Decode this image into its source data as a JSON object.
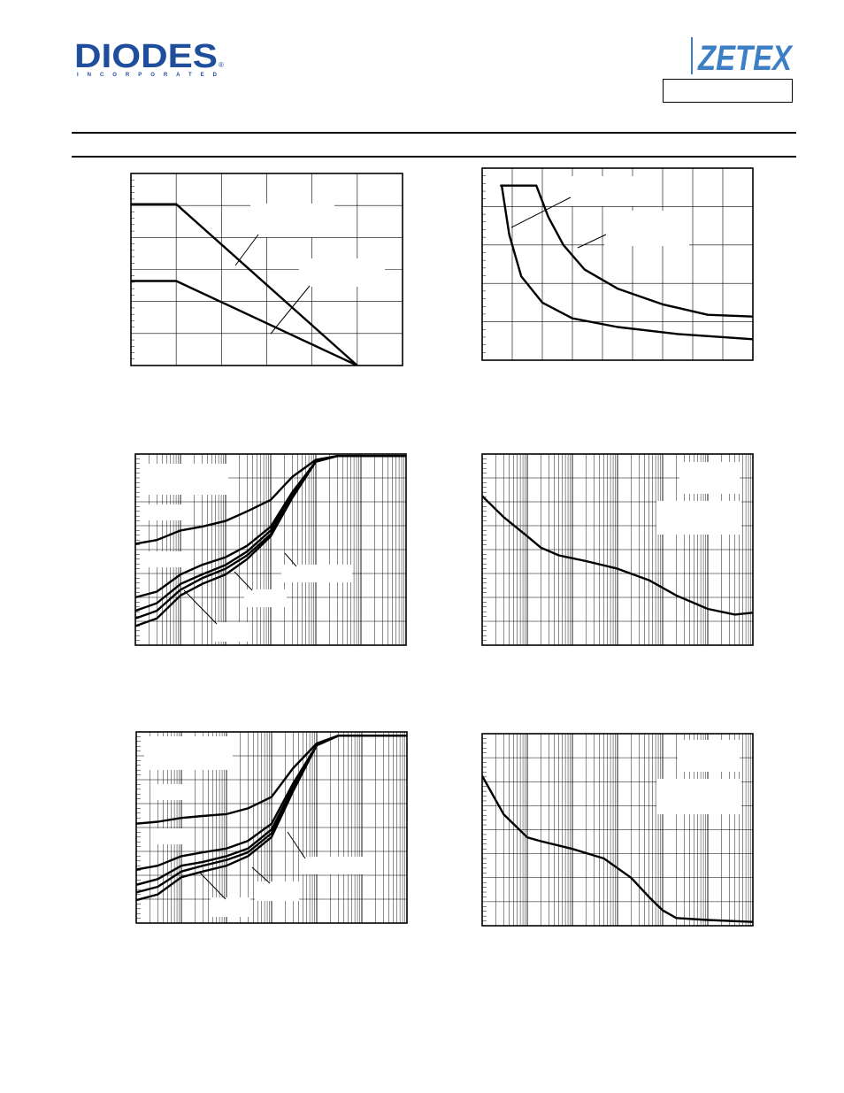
{
  "header": {
    "brand_left": "DIODES",
    "brand_left_sub": "INCORPORATED",
    "brand_left_mark": "®",
    "brand_right": "ZETEX",
    "part_number": ""
  },
  "colors": {
    "diodes_blue": "#1f4e9c",
    "zetex_blue": "#3d7fc4",
    "ink": "#000000",
    "grid": "#000000"
  },
  "chart_data": [
    {
      "name": "top-left",
      "type": "line",
      "xlim": [
        0,
        6
      ],
      "ylim": [
        0,
        5
      ],
      "series": [
        {
          "x": [
            0,
            1,
            5
          ],
          "y": [
            4.2,
            4.2,
            0
          ]
        },
        {
          "x": [
            0,
            1,
            5
          ],
          "y": [
            2.2,
            2.2,
            0
          ]
        }
      ]
    },
    {
      "name": "top-right",
      "type": "line",
      "xlim": [
        0,
        9
      ],
      "ylim": [
        0,
        5.5
      ],
      "series": [
        {
          "x": [
            0.6,
            1.8,
            2.2,
            2.7,
            3.4,
            4.5,
            6,
            7.5,
            9
          ],
          "y": [
            5,
            5,
            4.1,
            3.3,
            2.6,
            2.05,
            1.6,
            1.3,
            1.25
          ]
        },
        {
          "x": [
            0.6,
            0.65,
            0.9,
            1.3,
            2,
            3,
            4.5,
            6.5,
            9
          ],
          "y": [
            5,
            5,
            3.6,
            2.4,
            1.65,
            1.2,
            0.95,
            0.75,
            0.6
          ]
        }
      ]
    },
    {
      "name": "middle-left",
      "type": "line",
      "xscale": "log",
      "xlim": [
        0.0001,
        100
      ],
      "ylim": [
        0,
        100
      ],
      "series": [
        {
          "x": [
            0.0001,
            0.0003,
            0.001,
            0.003,
            0.01,
            0.03,
            0.1,
            0.3,
            1,
            3,
            10,
            100
          ],
          "y": [
            53,
            55,
            60,
            62,
            65,
            70,
            76,
            88,
            97,
            99,
            99,
            99
          ]
        },
        {
          "x": [
            0.0001,
            0.0003,
            0.001,
            0.003,
            0.01,
            0.03,
            0.1,
            0.3,
            1,
            3,
            10,
            100
          ],
          "y": [
            25,
            28,
            37,
            42,
            46,
            52,
            62,
            80,
            96,
            99,
            99,
            99
          ]
        },
        {
          "x": [
            0.0001,
            0.0003,
            0.001,
            0.003,
            0.01,
            0.03,
            0.1,
            0.3,
            1,
            3,
            10,
            100
          ],
          "y": [
            18,
            22,
            32,
            37,
            42,
            49,
            60,
            79,
            96,
            99,
            99,
            99
          ]
        },
        {
          "x": [
            0.0001,
            0.0003,
            0.001,
            0.003,
            0.01,
            0.03,
            0.1,
            0.3,
            1,
            3,
            10,
            100
          ],
          "y": [
            14,
            18,
            29,
            35,
            40,
            47,
            58,
            78,
            96,
            99,
            99,
            99
          ]
        },
        {
          "x": [
            0.0001,
            0.0003,
            0.001,
            0.003,
            0.01,
            0.03,
            0.1,
            0.3,
            1,
            3,
            10,
            100
          ],
          "y": [
            10,
            14,
            26,
            32,
            37,
            45,
            57,
            77,
            96,
            99,
            99,
            99
          ]
        }
      ]
    },
    {
      "name": "middle-right",
      "type": "line",
      "xscale": "log",
      "xlim": [
        0.0001,
        100
      ],
      "ylim": [
        0,
        100
      ],
      "series": [
        {
          "x": [
            0.0001,
            0.0003,
            0.001,
            0.002,
            0.005,
            0.02,
            0.1,
            0.5,
            2,
            10,
            40,
            100
          ],
          "y": [
            78,
            67,
            57,
            51,
            47,
            44,
            40,
            34,
            26,
            19,
            16,
            17
          ]
        }
      ]
    },
    {
      "name": "bottom-left",
      "type": "line",
      "xscale": "log",
      "xlim": [
        0.0001,
        100
      ],
      "ylim": [
        0,
        100
      ],
      "series": [
        {
          "x": [
            0.0001,
            0.0003,
            0.001,
            0.003,
            0.01,
            0.03,
            0.1,
            0.3,
            1,
            3,
            10,
            100
          ],
          "y": [
            52,
            53,
            55,
            56,
            57,
            60,
            66,
            81,
            94,
            98,
            98,
            98
          ]
        },
        {
          "x": [
            0.0001,
            0.0003,
            0.001,
            0.003,
            0.01,
            0.03,
            0.1,
            0.3,
            1,
            3,
            10,
            100
          ],
          "y": [
            28,
            30,
            35,
            37,
            39,
            43,
            52,
            73,
            93,
            98,
            98,
            98
          ]
        },
        {
          "x": [
            0.0001,
            0.0003,
            0.001,
            0.003,
            0.01,
            0.03,
            0.1,
            0.3,
            1,
            3,
            10,
            100
          ],
          "y": [
            20,
            23,
            30,
            32,
            35,
            39,
            49,
            71,
            93,
            98,
            98,
            98
          ]
        },
        {
          "x": [
            0.0001,
            0.0003,
            0.001,
            0.003,
            0.01,
            0.03,
            0.1,
            0.3,
            1,
            3,
            10,
            100
          ],
          "y": [
            16,
            19,
            27,
            30,
            33,
            37,
            47,
            70,
            93,
            98,
            98,
            98
          ]
        },
        {
          "x": [
            0.0001,
            0.0003,
            0.001,
            0.003,
            0.01,
            0.03,
            0.1,
            0.3,
            1,
            3,
            10,
            100
          ],
          "y": [
            12,
            15,
            24,
            27,
            30,
            35,
            45,
            69,
            93,
            98,
            98,
            98
          ]
        }
      ]
    },
    {
      "name": "bottom-right",
      "type": "line",
      "xscale": "log",
      "xlim": [
        0.0001,
        100
      ],
      "ylim": [
        0,
        100
      ],
      "series": [
        {
          "x": [
            0.0001,
            0.0003,
            0.001,
            0.002,
            0.01,
            0.05,
            0.2,
            0.5,
            1,
            2,
            10,
            100
          ],
          "y": [
            78,
            58,
            46,
            44,
            40,
            35,
            25,
            15,
            8,
            4,
            3,
            2
          ]
        }
      ]
    }
  ]
}
